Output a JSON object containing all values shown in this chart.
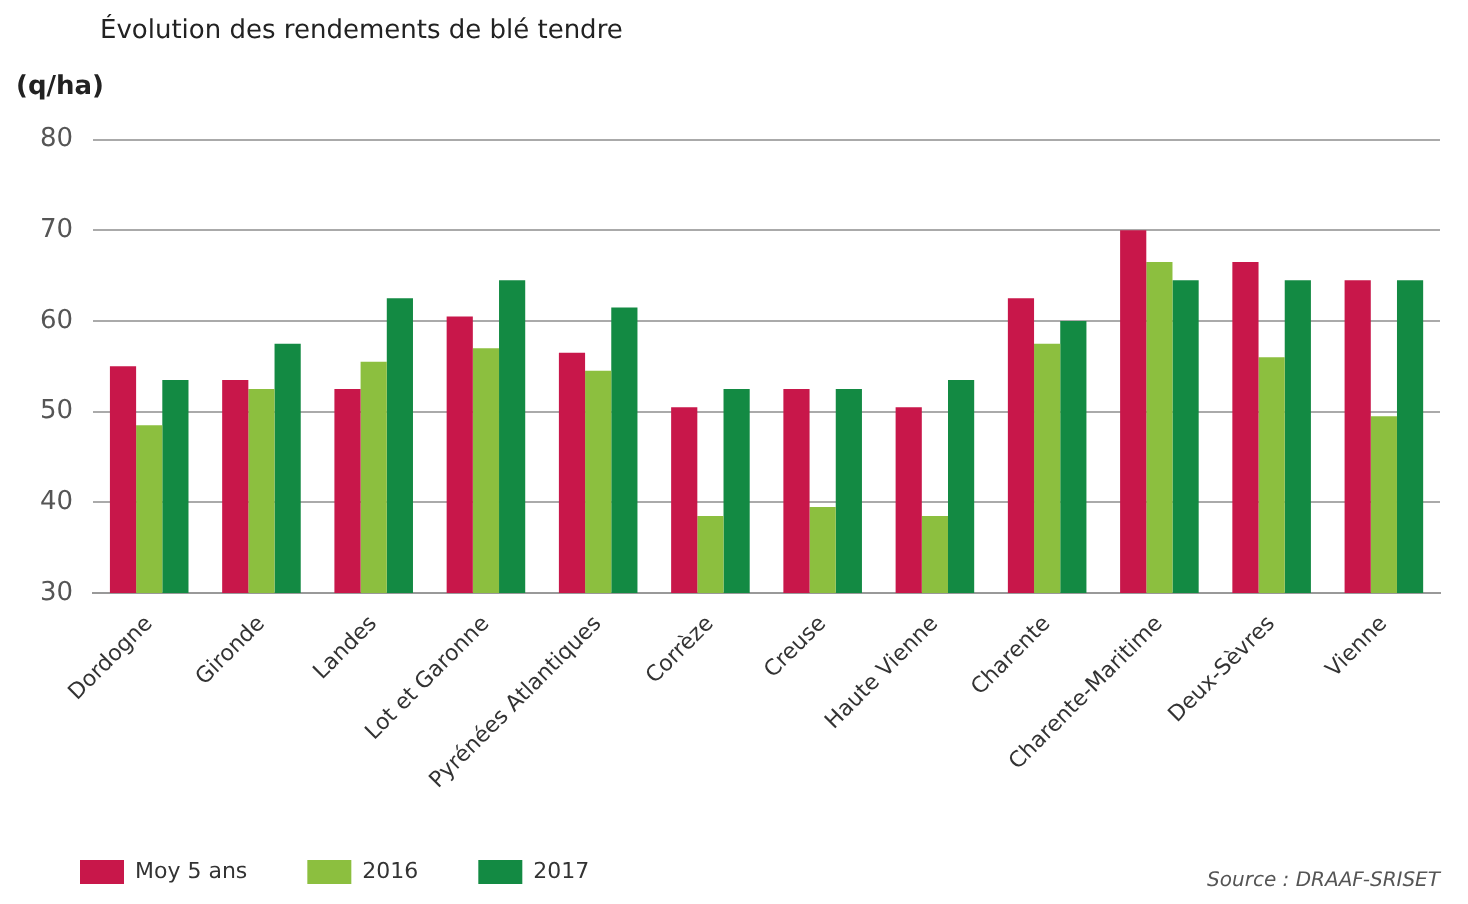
{
  "chart_data": {
    "type": "bar",
    "title": "Évolution des rendements de blé tendre",
    "ylabel": "(q/ha)",
    "categories": [
      "Dordogne",
      "Gironde",
      "Landes",
      "Lot et Garonne",
      "Pyrénées Atlantiques",
      "Corrèze",
      "Creuse",
      "Haute Vienne",
      "Charente",
      "Charente-Maritime",
      "Deux-Sèvres",
      "Vienne"
    ],
    "series": [
      {
        "name": "Moy 5 ans",
        "color": "#c8174a",
        "values": [
          55,
          53.5,
          52.5,
          60.5,
          56.5,
          50.5,
          52.5,
          50.5,
          62.5,
          70,
          66.5,
          64.5
        ]
      },
      {
        "name": "2016",
        "color": "#8cbf3f",
        "values": [
          48.5,
          52.5,
          55.5,
          57,
          54.5,
          38.5,
          39.5,
          38.5,
          57.5,
          66.5,
          56,
          49.5
        ]
      },
      {
        "name": "2017",
        "color": "#138a43",
        "values": [
          53.5,
          57.5,
          62.5,
          64.5,
          61.5,
          52.5,
          52.5,
          53.5,
          60,
          64.5,
          64.5,
          64.5
        ]
      }
    ],
    "ylim": [
      30,
      80
    ],
    "yticks": [
      30,
      40,
      50,
      60,
      70,
      80
    ],
    "grid": "y",
    "legend": "bottom left",
    "annotations": [
      "Source : DRAAF-SRISET"
    ]
  }
}
